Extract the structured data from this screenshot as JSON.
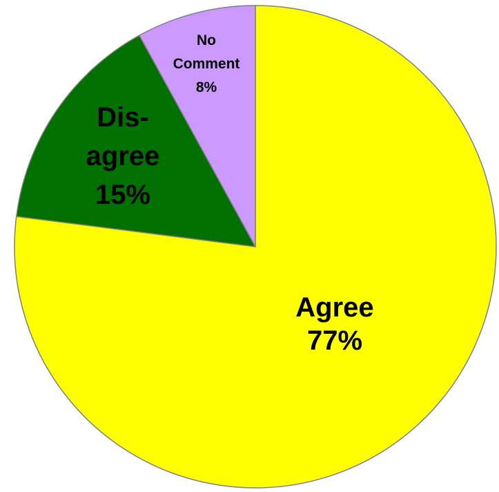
{
  "chart_data": {
    "type": "pie",
    "slices": [
      {
        "name": "Agree",
        "value": 77,
        "label_lines": [
          "Agree",
          "77%"
        ],
        "color": "#ffff00"
      },
      {
        "name": "Disagree",
        "value": 15,
        "label_lines": [
          "Dis-",
          "agree",
          "15%"
        ],
        "color": "#007000"
      },
      {
        "name": "No Comment",
        "value": 8,
        "label_lines": [
          "No",
          "Comment",
          "8%"
        ],
        "color": "#cc99ff"
      }
    ],
    "start_angle_deg": 0,
    "direction": "clockwise",
    "edge_color": "#808080"
  }
}
